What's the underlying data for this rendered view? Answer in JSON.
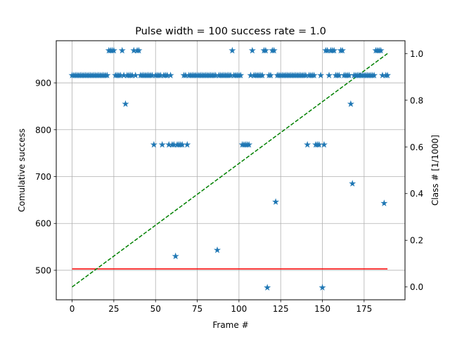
{
  "chart_data": {
    "type": "scatter",
    "title": "Pulse width = 100   success rate = 1.0",
    "xlabel": "Frame #",
    "ylabel": "Comulative success",
    "y2label": "Class # [1/1000]",
    "xlim": [
      -9.5,
      199.5
    ],
    "ylim": [
      437,
      990
    ],
    "y2lim": [
      -0.055,
      1.055
    ],
    "xticks": [
      0,
      25,
      50,
      75,
      100,
      125,
      150,
      175
    ],
    "yticks": [
      500,
      600,
      700,
      800,
      900
    ],
    "y2ticks": [
      0.0,
      0.2,
      0.4,
      0.6,
      0.8,
      1.0
    ],
    "grid": true,
    "series": [
      {
        "kind": "points",
        "color": "#1f77b4",
        "marker": "star",
        "axis": "left",
        "points": [
          [
            0,
            916
          ],
          [
            1,
            916
          ],
          [
            2,
            916
          ],
          [
            3,
            916
          ],
          [
            4,
            916
          ],
          [
            5,
            916
          ],
          [
            6,
            916
          ],
          [
            7,
            916
          ],
          [
            8,
            916
          ],
          [
            9,
            916
          ],
          [
            10,
            916
          ],
          [
            11,
            916
          ],
          [
            12,
            916
          ],
          [
            13,
            916
          ],
          [
            14,
            916
          ],
          [
            15,
            916
          ],
          [
            16,
            916
          ],
          [
            17,
            916
          ],
          [
            18,
            916
          ],
          [
            19,
            916
          ],
          [
            20,
            916
          ],
          [
            21,
            916
          ],
          [
            22,
            969
          ],
          [
            23,
            969
          ],
          [
            24,
            969
          ],
          [
            25,
            969
          ],
          [
            26,
            916
          ],
          [
            27,
            916
          ],
          [
            28,
            916
          ],
          [
            29,
            916
          ],
          [
            30,
            969
          ],
          [
            31,
            916
          ],
          [
            32,
            855
          ],
          [
            33,
            916
          ],
          [
            34,
            916
          ],
          [
            35,
            916
          ],
          [
            36,
            916
          ],
          [
            37,
            969
          ],
          [
            38,
            916
          ],
          [
            39,
            969
          ],
          [
            40,
            969
          ],
          [
            41,
            916
          ],
          [
            42,
            916
          ],
          [
            43,
            916
          ],
          [
            44,
            916
          ],
          [
            45,
            916
          ],
          [
            46,
            916
          ],
          [
            47,
            916
          ],
          [
            48,
            916
          ],
          [
            49,
            768
          ],
          [
            50,
            916
          ],
          [
            51,
            916
          ],
          [
            52,
            916
          ],
          [
            53,
            916
          ],
          [
            54,
            768
          ],
          [
            55,
            916
          ],
          [
            56,
            916
          ],
          [
            57,
            916
          ],
          [
            58,
            768
          ],
          [
            59,
            916
          ],
          [
            60,
            768
          ],
          [
            61,
            768
          ],
          [
            62,
            530
          ],
          [
            63,
            768
          ],
          [
            64,
            768
          ],
          [
            65,
            768
          ],
          [
            66,
            768
          ],
          [
            67,
            916
          ],
          [
            68,
            916
          ],
          [
            69,
            768
          ],
          [
            70,
            916
          ],
          [
            71,
            916
          ],
          [
            72,
            916
          ],
          [
            73,
            916
          ],
          [
            74,
            916
          ],
          [
            75,
            916
          ],
          [
            76,
            916
          ],
          [
            77,
            916
          ],
          [
            78,
            916
          ],
          [
            79,
            916
          ],
          [
            80,
            916
          ],
          [
            81,
            916
          ],
          [
            82,
            916
          ],
          [
            83,
            916
          ],
          [
            84,
            916
          ],
          [
            85,
            916
          ],
          [
            86,
            916
          ],
          [
            87,
            543
          ],
          [
            88,
            916
          ],
          [
            89,
            916
          ],
          [
            90,
            916
          ],
          [
            91,
            916
          ],
          [
            92,
            916
          ],
          [
            93,
            916
          ],
          [
            94,
            916
          ],
          [
            95,
            916
          ],
          [
            96,
            969
          ],
          [
            97,
            916
          ],
          [
            98,
            916
          ],
          [
            99,
            916
          ],
          [
            100,
            916
          ],
          [
            101,
            916
          ],
          [
            102,
            768
          ],
          [
            103,
            768
          ],
          [
            104,
            768
          ],
          [
            105,
            768
          ],
          [
            106,
            768
          ],
          [
            107,
            916
          ],
          [
            108,
            969
          ],
          [
            109,
            916
          ],
          [
            110,
            916
          ],
          [
            111,
            916
          ],
          [
            112,
            916
          ],
          [
            113,
            916
          ],
          [
            114,
            916
          ],
          [
            115,
            969
          ],
          [
            116,
            969
          ],
          [
            117,
            463
          ],
          [
            118,
            916
          ],
          [
            119,
            916
          ],
          [
            120,
            969
          ],
          [
            121,
            969
          ],
          [
            122,
            646
          ],
          [
            123,
            916
          ],
          [
            124,
            916
          ],
          [
            125,
            916
          ],
          [
            126,
            916
          ],
          [
            127,
            916
          ],
          [
            128,
            916
          ],
          [
            129,
            916
          ],
          [
            130,
            916
          ],
          [
            131,
            916
          ],
          [
            132,
            916
          ],
          [
            133,
            916
          ],
          [
            134,
            916
          ],
          [
            135,
            916
          ],
          [
            136,
            916
          ],
          [
            137,
            916
          ],
          [
            138,
            916
          ],
          [
            139,
            916
          ],
          [
            140,
            916
          ],
          [
            141,
            768
          ],
          [
            142,
            916
          ],
          [
            143,
            916
          ],
          [
            144,
            916
          ],
          [
            145,
            916
          ],
          [
            146,
            768
          ],
          [
            147,
            768
          ],
          [
            148,
            768
          ],
          [
            149,
            916
          ],
          [
            150,
            463
          ],
          [
            151,
            768
          ],
          [
            152,
            969
          ],
          [
            153,
            969
          ],
          [
            154,
            916
          ],
          [
            155,
            969
          ],
          [
            156,
            969
          ],
          [
            157,
            969
          ],
          [
            158,
            916
          ],
          [
            159,
            916
          ],
          [
            160,
            916
          ],
          [
            161,
            969
          ],
          [
            162,
            969
          ],
          [
            163,
            916
          ],
          [
            164,
            916
          ],
          [
            165,
            916
          ],
          [
            166,
            916
          ],
          [
            167,
            855
          ],
          [
            168,
            685
          ],
          [
            169,
            916
          ],
          [
            170,
            916
          ],
          [
            171,
            916
          ],
          [
            172,
            916
          ],
          [
            173,
            916
          ],
          [
            174,
            916
          ],
          [
            175,
            916
          ],
          [
            176,
            916
          ],
          [
            177,
            916
          ],
          [
            178,
            916
          ],
          [
            179,
            916
          ],
          [
            180,
            916
          ],
          [
            181,
            916
          ],
          [
            182,
            969
          ],
          [
            183,
            969
          ],
          [
            184,
            969
          ],
          [
            185,
            969
          ],
          [
            186,
            916
          ],
          [
            187,
            643
          ],
          [
            188,
            916
          ],
          [
            189,
            916
          ]
        ]
      },
      {
        "kind": "line",
        "color": "#ff0000",
        "style": "solid",
        "axis": "left",
        "points": [
          [
            0,
            503
          ],
          [
            189,
            503
          ]
        ]
      },
      {
        "kind": "line",
        "color": "#008000",
        "style": "dashed",
        "axis": "right",
        "points": [
          [
            0,
            0.0
          ],
          [
            189,
            1.0
          ]
        ]
      }
    ]
  }
}
